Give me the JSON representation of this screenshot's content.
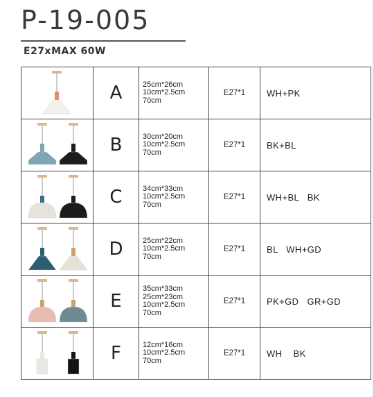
{
  "header": {
    "model": "P-19-005",
    "spec": "E27xMAX 60W"
  },
  "rows": [
    {
      "letter": "A",
      "sizes": [
        "25cm*26cm",
        "10cm*2.5cm",
        "70cm"
      ],
      "lamp": "E27*1",
      "color": "WH+PK",
      "lamps": [
        {
          "shade": "#f2f1ec",
          "body": "#e2896f",
          "shape": "cone"
        }
      ]
    },
    {
      "letter": "B",
      "sizes": [
        "30cm*20cm",
        "10cm*2.5cm",
        "70cm"
      ],
      "lamp": "E27*1",
      "color": "BK+BL",
      "lamps": [
        {
          "shade": "#7fa6b5",
          "body": "#7fa6b5",
          "shape": "flat"
        },
        {
          "shade": "#1d1d1d",
          "body": "#1d1d1d",
          "shape": "flat"
        }
      ]
    },
    {
      "letter": "C",
      "sizes": [
        "34cm*33cm",
        "10cm*2.5cm",
        "70cm"
      ],
      "lamp": "E27*1",
      "color": "WH+BL   BK",
      "lamps": [
        {
          "shade": "#e6e3dc",
          "body": "#3a6f86",
          "shape": "dome"
        },
        {
          "shade": "#1c1c1c",
          "body": "#1c1c1c",
          "shape": "dome"
        }
      ]
    },
    {
      "letter": "D",
      "sizes": [
        "25cm*22cm",
        "10cm*2.5cm",
        "70cm"
      ],
      "lamp": "E27*1",
      "color": "BL   WH+GD",
      "lamps": [
        {
          "shade": "#2f5d72",
          "body": "#2f5d72",
          "shape": "cone"
        },
        {
          "shade": "#e7e1d6",
          "body": "#c9a36b",
          "shape": "cone"
        }
      ]
    },
    {
      "letter": "E",
      "sizes": [
        "35cm*33cm",
        "25cm*23cm",
        "10cm*2.5cm",
        "70cm"
      ],
      "lamp": "E27*1",
      "color": "PK+GD   GR+GD",
      "lamps": [
        {
          "shade": "#e9bcb3",
          "body": "#c9a36b",
          "shape": "dome"
        },
        {
          "shade": "#6d8a95",
          "body": "#c9a36b",
          "shape": "dome"
        }
      ]
    },
    {
      "letter": "F",
      "sizes": [
        "12cm*16cm",
        "10cm*2.5cm",
        "70cm"
      ],
      "lamp": "E27*1",
      "color": "WH    BK",
      "lamps": [
        {
          "shade": "#e9e9e4",
          "body": "#e9e9e4",
          "shape": "cyl"
        },
        {
          "shade": "#151515",
          "body": "#151515",
          "shape": "cyl"
        }
      ]
    }
  ]
}
